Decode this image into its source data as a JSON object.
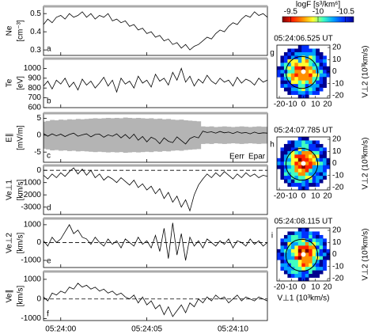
{
  "chart_data": [
    {
      "type": "line",
      "panel": "a",
      "ylabel": [
        "Ne",
        "[cm⁻³]"
      ],
      "ylim": [
        0.27,
        0.54
      ],
      "yticks": [
        0.3,
        0.4,
        0.5
      ],
      "xlim": [
        -1,
        12
      ],
      "xticks": [
        0,
        5,
        10
      ],
      "color": "#000000",
      "x": [
        -1,
        -0.75,
        -0.5,
        -0.25,
        0,
        0.25,
        0.5,
        0.75,
        1,
        1.25,
        1.5,
        1.75,
        2,
        2.25,
        2.5,
        2.75,
        3,
        3.25,
        3.5,
        3.75,
        4,
        4.25,
        4.5,
        4.75,
        5,
        5.25,
        5.5,
        5.75,
        6,
        6.25,
        6.5,
        6.75,
        7,
        7.25,
        7.5,
        7.75,
        8,
        8.25,
        8.5,
        8.75,
        9,
        9.25,
        9.5,
        9.75,
        10,
        10.25,
        10.5,
        10.75,
        11,
        11.25,
        11.5,
        11.75,
        12
      ],
      "values": [
        0.44,
        0.47,
        0.45,
        0.48,
        0.49,
        0.47,
        0.5,
        0.48,
        0.49,
        0.51,
        0.48,
        0.5,
        0.47,
        0.49,
        0.48,
        0.5,
        0.46,
        0.47,
        0.45,
        0.46,
        0.43,
        0.44,
        0.41,
        0.42,
        0.39,
        0.4,
        0.37,
        0.38,
        0.35,
        0.36,
        0.33,
        0.34,
        0.31,
        0.33,
        0.3,
        0.32,
        0.33,
        0.35,
        0.37,
        0.36,
        0.39,
        0.41,
        0.4,
        0.43,
        0.45,
        0.44,
        0.47,
        0.49,
        0.48,
        0.51,
        0.49,
        0.5,
        0.48
      ]
    },
    {
      "type": "line",
      "panel": "b",
      "ylabel": [
        "Te",
        "[eV]"
      ],
      "ylim": [
        600,
        1100
      ],
      "yticks": [
        600,
        700,
        800,
        900,
        1000
      ],
      "xlim": [
        -1,
        12
      ],
      "xticks": [
        0,
        5,
        10
      ],
      "color": "#000000",
      "x": [
        -1,
        -0.75,
        -0.5,
        -0.25,
        0,
        0.25,
        0.5,
        0.75,
        1,
        1.25,
        1.5,
        1.75,
        2,
        2.25,
        2.5,
        2.75,
        3,
        3.25,
        3.5,
        3.75,
        4,
        4.25,
        4.5,
        4.75,
        5,
        5.25,
        5.5,
        5.75,
        6,
        6.25,
        6.5,
        6.75,
        7,
        7.25,
        7.5,
        7.75,
        8,
        8.25,
        8.5,
        8.75,
        9,
        9.25,
        9.5,
        9.75,
        10,
        10.25,
        10.5,
        10.75,
        11,
        11.25,
        11.5,
        11.75,
        12
      ],
      "values": [
        820,
        870,
        790,
        880,
        840,
        900,
        810,
        860,
        780,
        890,
        830,
        870,
        800,
        850,
        910,
        820,
        880,
        760,
        900,
        840,
        870,
        800,
        920,
        850,
        880,
        810,
        940,
        870,
        900,
        830,
        960,
        880,
        1000,
        860,
        920,
        820,
        890,
        850,
        930,
        870,
        840,
        900,
        860,
        880,
        820,
        910,
        850,
        890,
        870,
        830,
        900,
        860,
        880
      ]
    },
    {
      "type": "line",
      "panel": "c",
      "ylabel": [
        "E∥",
        "[mV/m]"
      ],
      "ylim": [
        -8,
        6.5
      ],
      "yticks": [
        -5,
        0,
        5
      ],
      "xlim": [
        -1,
        12
      ],
      "xticks": [
        0,
        5,
        10
      ],
      "x": [
        -1,
        -0.75,
        -0.5,
        -0.25,
        0,
        0.25,
        0.5,
        0.75,
        1,
        1.25,
        1.5,
        1.75,
        2,
        2.25,
        2.5,
        2.75,
        3,
        3.25,
        3.5,
        3.75,
        4,
        4.25,
        4.5,
        4.75,
        5,
        5.25,
        5.5,
        5.75,
        6,
        6.25,
        6.5,
        6.75,
        7,
        7.25,
        7.5,
        7.75,
        8,
        8.25,
        8.5,
        8.75,
        9,
        9.25,
        9.5,
        9.75,
        10,
        10.25,
        10.5,
        10.75,
        11,
        11.25,
        11.5,
        11.75,
        12
      ],
      "series": [
        {
          "name": "Eerr",
          "color": "#b4b4b4",
          "style": "band",
          "values": [
            4,
            4.2,
            4.5,
            4.4,
            4.6,
            4.5,
            4.7,
            4.6,
            4.8,
            4.7,
            4.8,
            4.9,
            5,
            4.9,
            5,
            5.1,
            5,
            5.1,
            5,
            5.2,
            5.1,
            5,
            5.1,
            5,
            4.9,
            5,
            4.8,
            4.9,
            4.7,
            4.8,
            4.6,
            4.5,
            4.6,
            4.4,
            4.3,
            4.2,
            4.1,
            2.6,
            2.5,
            2.6,
            2.4,
            2.5,
            2.6,
            2.5,
            2.4,
            2.5,
            2.6,
            2.5,
            2.4,
            2.5,
            2.6,
            2.5,
            2.5
          ]
        },
        {
          "name": "Epar",
          "color": "#000000",
          "style": "line",
          "values": [
            0.5,
            -0.3,
            0.4,
            -0.2,
            0.3,
            -0.4,
            0.2,
            0.6,
            -0.3,
            0.1,
            0.4,
            -0.5,
            0.2,
            0.3,
            -0.6,
            0.1,
            -0.3,
            0.4,
            -0.8,
            0.2,
            -1,
            0.3,
            -1.5,
            -0.4,
            -2,
            -0.6,
            -1.2,
            -2.5,
            -0.8,
            -1.8,
            -2.2,
            -0.5,
            -1.6,
            -2.6,
            -1,
            -0.4,
            -0.8,
            1.2,
            0.8,
            1,
            0.6,
            1.1,
            0.7,
            0.9,
            0.5,
            1,
            0.6,
            0.8,
            0.4,
            0.9,
            0.5,
            0.7,
            0.6
          ]
        }
      ]
    },
    {
      "type": "line",
      "panel": "d",
      "ylabel": [
        "Ve⊥1",
        "[km/s]"
      ],
      "ylim": [
        -3600,
        400
      ],
      "yticks": [
        -3000,
        -2000,
        -1000,
        0
      ],
      "xlim": [
        -1,
        12
      ],
      "xticks": [
        0,
        5,
        10
      ],
      "color": "#000000",
      "zero_line": true,
      "x": [
        -1,
        -0.75,
        -0.5,
        -0.25,
        0,
        0.25,
        0.5,
        0.75,
        1,
        1.25,
        1.5,
        1.75,
        2,
        2.25,
        2.5,
        2.75,
        3,
        3.25,
        3.5,
        3.75,
        4,
        4.25,
        4.5,
        4.75,
        5,
        5.25,
        5.5,
        5.75,
        6,
        6.25,
        6.5,
        6.75,
        7,
        7.25,
        7.5,
        7.75,
        8,
        8.25,
        8.5,
        8.75,
        9,
        9.25,
        9.5,
        9.75,
        10,
        10.25,
        10.5,
        10.75,
        11,
        11.25,
        11.5,
        11.75,
        12
      ],
      "values": [
        -400,
        -700,
        -300,
        -600,
        -200,
        -500,
        -100,
        200,
        -300,
        100,
        -400,
        0,
        -600,
        -300,
        -800,
        -500,
        -700,
        -1000,
        -600,
        -900,
        -1200,
        -800,
        -1400,
        -1100,
        -1600,
        -1300,
        -1900,
        -1500,
        -2300,
        -1800,
        -2600,
        -2100,
        -3000,
        -2400,
        -3300,
        -2000,
        -1200,
        -700,
        -300,
        -600,
        -200,
        -500,
        -100,
        -400,
        -700,
        -300,
        -600,
        -200,
        -500,
        -300,
        -600,
        -400,
        -500
      ]
    },
    {
      "type": "line",
      "panel": "e",
      "ylabel": [
        "Ve⊥2",
        "[km/s]"
      ],
      "ylim": [
        -1400,
        1350
      ],
      "yticks": [
        -1000,
        0,
        1000
      ],
      "xlim": [
        -1,
        12
      ],
      "xticks": [
        0,
        5,
        10
      ],
      "color": "#000000",
      "zero_line": true,
      "x": [
        -1,
        -0.75,
        -0.5,
        -0.25,
        0,
        0.25,
        0.5,
        0.75,
        1,
        1.25,
        1.5,
        1.75,
        2,
        2.25,
        2.5,
        2.75,
        3,
        3.25,
        3.5,
        3.75,
        4,
        4.25,
        4.5,
        4.75,
        5,
        5.25,
        5.5,
        5.75,
        6,
        6.25,
        6.5,
        6.75,
        7,
        7.25,
        7.5,
        7.75,
        8,
        8.25,
        8.5,
        8.75,
        9,
        9.25,
        9.5,
        9.75,
        10,
        10.25,
        10.5,
        10.75,
        11,
        11.25,
        11.5,
        11.75,
        12
      ],
      "values": [
        100,
        -200,
        300,
        0,
        200,
        600,
        1000,
        500,
        700,
        300,
        200,
        -100,
        300,
        0,
        -200,
        200,
        -100,
        100,
        -300,
        200,
        0,
        -200,
        300,
        -100,
        100,
        -300,
        400,
        -500,
        800,
        -900,
        1100,
        -700,
        500,
        -1000,
        300,
        -200,
        100,
        -300,
        200,
        0,
        -200,
        100,
        -100,
        200,
        -300,
        100,
        0,
        -200,
        200,
        -100,
        100,
        -200,
        0
      ]
    },
    {
      "type": "line",
      "panel": "f",
      "ylabel": [
        "Ve∥",
        "[km/s]"
      ],
      "ylim": [
        -1100,
        1400
      ],
      "yticks": [
        -1000,
        0,
        1000
      ],
      "xlim": [
        -1,
        12
      ],
      "xticks": [
        {
          "value": 0,
          "label": "05:24:00"
        },
        {
          "value": 5,
          "label": "05:24:05"
        },
        {
          "value": 10,
          "label": "05:24:10"
        }
      ],
      "color": "#000000",
      "zero_line": true,
      "x": [
        -1,
        -0.75,
        -0.5,
        -0.25,
        0,
        0.25,
        0.5,
        0.75,
        1,
        1.25,
        1.5,
        1.75,
        2,
        2.25,
        2.5,
        2.75,
        3,
        3.25,
        3.5,
        3.75,
        4,
        4.25,
        4.5,
        4.75,
        5,
        5.25,
        5.5,
        5.75,
        6,
        6.25,
        6.5,
        6.75,
        7,
        7.25,
        7.5,
        7.75,
        8,
        8.25,
        8.5,
        8.75,
        9,
        9.25,
        9.5,
        9.75,
        10,
        10.25,
        10.5,
        10.75,
        11,
        11.25,
        11.5,
        11.75,
        12
      ],
      "values": [
        100,
        -100,
        300,
        200,
        400,
        300,
        600,
        500,
        800,
        600,
        700,
        500,
        600,
        400,
        500,
        300,
        400,
        200,
        300,
        100,
        0,
        200,
        -200,
        100,
        -300,
        -100,
        -500,
        -300,
        -800,
        -400,
        -900,
        -600,
        -300,
        -700,
        -200,
        -400,
        0,
        -200,
        100,
        -100,
        200,
        0,
        100,
        -200,
        0,
        200,
        -100,
        100,
        0,
        -100,
        100,
        0,
        -100
      ]
    },
    {
      "type": "distribution",
      "colorbar_title": "logF [s³/km⁶]",
      "clim": [
        -9.35,
        -10.65
      ],
      "cticks": [
        -9.5,
        -10,
        -10.5
      ],
      "colormap": [
        "#7f0000",
        "#ff2000",
        "#ff9000",
        "#ffff30",
        "#40ffc0",
        "#00a0ff",
        "#0030ff",
        "#00008f"
      ],
      "xlabel": "V⊥1 (10³km/s)",
      "ylabel": "V⊥2 (10³km/s)",
      "xlim": [
        -22,
        22
      ],
      "ylim": [
        -22,
        22
      ],
      "xticks": [
        -20,
        -10,
        0,
        10,
        20
      ],
      "yticks": [
        -20,
        -10,
        0,
        10,
        20
      ],
      "panels": [
        {
          "label": "g",
          "time": "05:24:06.525 UT"
        },
        {
          "label": "h",
          "time": "05:24:07.785 UT"
        },
        {
          "label": "i",
          "time": "05:24:08.115 UT"
        }
      ]
    }
  ]
}
